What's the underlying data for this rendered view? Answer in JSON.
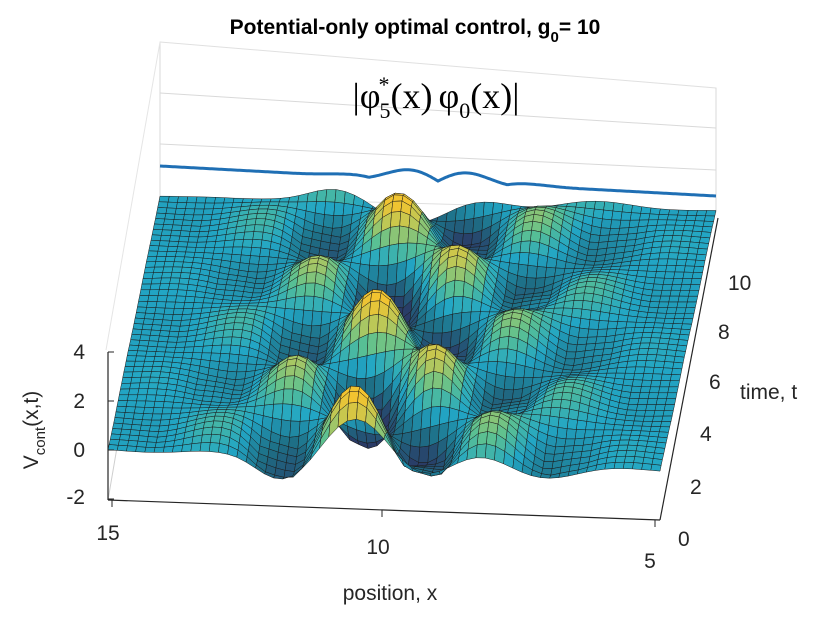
{
  "chart_data": {
    "type": "surface",
    "title": "Potential-only optimal control, g",
    "title_sub": "0",
    "title_suffix": "= 10",
    "annotation": {
      "bar": "|",
      "phi": "φ",
      "sub1": "5",
      "sup1": "*",
      "arg1": "(x)",
      "sub2": "0",
      "arg2": "(x)|"
    },
    "xlabel": "position, x",
    "ylabel": "time, t",
    "zlabel": "V",
    "zlabel_sub": "cont",
    "zlabel_suffix": "(x,t)",
    "xlim": [
      5,
      15
    ],
    "ylim": [
      0,
      11.5
    ],
    "zlim": [
      -2,
      4
    ],
    "x_ticks": [
      "15",
      "10",
      "5"
    ],
    "y_ticks": [
      "0",
      "2",
      "4",
      "6",
      "8",
      "10"
    ],
    "z_ticks": [
      "-2",
      "0",
      "2",
      "4"
    ],
    "overlay_curve": "|φ5*(x) φ0(x)| profile along position",
    "colormap": [
      "#2a3b66",
      "#1e6f86",
      "#22a6c5",
      "#5cc191",
      "#b8c85a",
      "#f2c430"
    ]
  }
}
